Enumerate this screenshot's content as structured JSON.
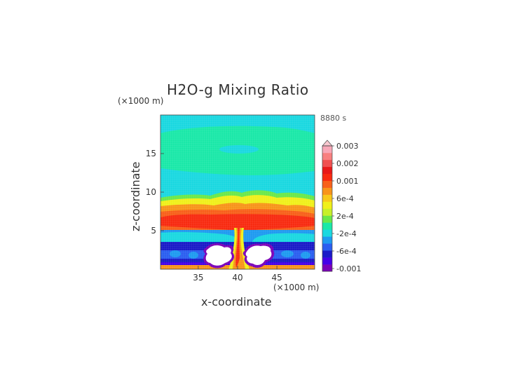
{
  "chart": {
    "title": "H2O-g Mixing Ratio",
    "time_label": "8880 s",
    "xlabel": "x-coordinate",
    "ylabel": "z-coordinate",
    "x_unit": "(×1000 m)",
    "z_unit": "(×1000 m)"
  },
  "chart_data": {
    "type": "heatmap",
    "title": "H2O-g Mixing Ratio",
    "xlabel": "x-coordinate",
    "ylabel": "z-coordinate",
    "x_unit": "(×1000 m)",
    "z_unit": "(×1000 m)",
    "time": "8880 s",
    "xlim": [
      30.2,
      49.8
    ],
    "ylim": [
      0,
      20
    ],
    "x_ticks": [
      35,
      40,
      45
    ],
    "y_ticks": [
      5,
      10,
      15
    ],
    "colorbar": {
      "labels": [
        {
          "text": "0.003",
          "value": 0.003
        },
        {
          "text": "0.002",
          "value": 0.002
        },
        {
          "text": "0.001",
          "value": 0.001
        },
        {
          "text": "6e-4",
          "value": 0.0006
        },
        {
          "text": "2e-4",
          "value": 0.0002
        },
        {
          "text": "-2e-4",
          "value": -0.0002
        },
        {
          "text": "-6e-4",
          "value": -0.0006
        },
        {
          "text": "-0.001",
          "value": -0.001
        }
      ],
      "colors": [
        "#7a00b8",
        "#4400e8",
        "#1a1ac8",
        "#2a5ef0",
        "#1e9af0",
        "#1ad8e0",
        "#1ae8a8",
        "#6ae84a",
        "#c8f02a",
        "#f0f01a",
        "#f8c81a",
        "#f8941a",
        "#f8601a",
        "#f82a10",
        "#e81818",
        "#f05050",
        "#f88080",
        "#f8a8b8"
      ],
      "max_triangle_color": "#f8c8d0"
    },
    "field_regions": [
      {
        "description": "background above 11 km",
        "color": "#1ad8e0"
      },
      {
        "description": "broad band 13.5-18.5 km",
        "color": "#1ae8a8"
      },
      {
        "description": "lens near 15 km",
        "color": "#1ad8e0"
      },
      {
        "description": "anvil core 5-7 km",
        "color": "#f82a10"
      },
      {
        "description": "lower layer 1-3.5 km",
        "color": "#1a1ac8"
      },
      {
        "description": "surface layer 0-0.5 km",
        "color": "#f8941a"
      },
      {
        "description": "white holes",
        "color": "#ffffff"
      }
    ]
  }
}
